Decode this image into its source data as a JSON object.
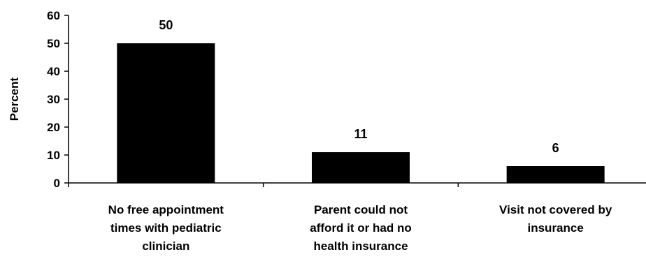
{
  "chart_data": {
    "type": "bar",
    "title": "",
    "xlabel": "",
    "ylabel": "Percent",
    "ylim": [
      0,
      60
    ],
    "yticks": [
      0,
      10,
      20,
      30,
      40,
      50,
      60
    ],
    "grid": false,
    "legend": "none",
    "bar_color": "#000000",
    "categories": [
      [
        "No free appointment",
        "times with pediatric",
        "clinician"
      ],
      [
        "Parent could not",
        "afford it or had no",
        "health insurance"
      ],
      [
        "Visit not covered by",
        "insurance"
      ]
    ],
    "values": [
      50,
      11,
      6
    ],
    "data_labels": [
      "50",
      "11",
      "6"
    ]
  }
}
